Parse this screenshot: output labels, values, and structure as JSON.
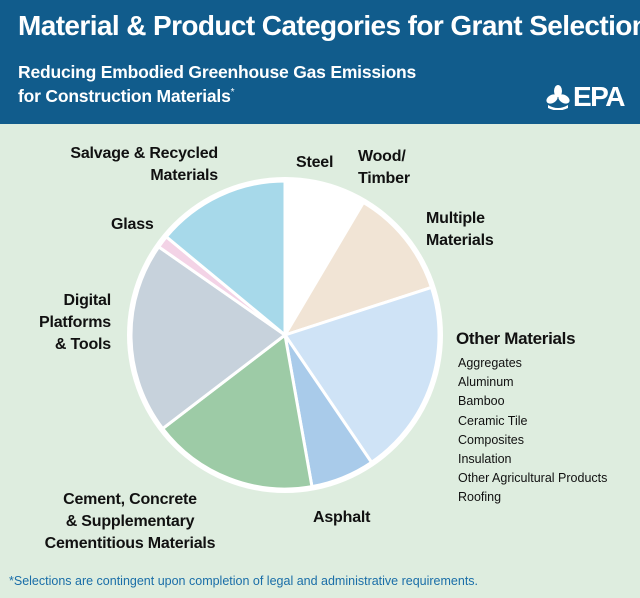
{
  "header": {
    "title": "Material & Product Categories for Grant Selections",
    "subtitle_line1": "Reducing Embodied Greenhouse Gas Emissions",
    "subtitle_line2": "for Construction Materials",
    "subtitle_mark": "*",
    "logo_text": "EPA"
  },
  "chart_data": {
    "type": "pie",
    "start_angle_deg": 0,
    "direction": "clockwise",
    "slices": [
      {
        "label": "Steel",
        "value": 5,
        "color": "#ffffff"
      },
      {
        "label": "Wood/ Timber",
        "value": 3.5,
        "color": "#ffffff"
      },
      {
        "label": "Multiple Materials",
        "value": 11.5,
        "color": "#f1e4d5"
      },
      {
        "label": "Other Materials",
        "value": 20.5,
        "color": "#cfe3f6"
      },
      {
        "label": "Asphalt",
        "value": 6.7,
        "color": "#a9cbea"
      },
      {
        "label": "Cement, Concrete & Supplementary Cementitious Materials",
        "value": 17.4,
        "color": "#9dcba6"
      },
      {
        "label": "Digital Platforms & Tools",
        "value": 20.1,
        "color": "#c7d2dc"
      },
      {
        "label": "Glass",
        "value": 1.3,
        "color": "#f3d3e6"
      },
      {
        "label": "Salvage & Recycled Materials",
        "value": 14,
        "color": "#a7d9ea"
      }
    ]
  },
  "labels": {
    "steel": "Steel",
    "wood_1": "Wood/",
    "wood_2": "Timber",
    "multiple_1": "Multiple",
    "multiple_2": "Materials",
    "salvage_1": "Salvage & Recycled",
    "salvage_2": "Materials",
    "glass": "Glass",
    "digital_1": "Digital",
    "digital_2": "Platforms",
    "digital_3": "& Tools",
    "cement_1": "Cement, Concrete",
    "cement_2": "& Supplementary",
    "cement_3": "Cementitious Materials",
    "asphalt": "Asphalt"
  },
  "other_materials": {
    "title": "Other Materials",
    "items": [
      "Aggregates",
      "Aluminum",
      "Bamboo",
      "Ceramic Tile",
      "Composites",
      "Insulation",
      "Other Agricultural Products",
      "Roofing"
    ]
  },
  "footnote": "*Selections are contingent upon completion of legal and administrative requirements.",
  "colors": {
    "header_bg": "#115c8c",
    "page_bg": "#deeddf",
    "footnote": "#1a6ea8",
    "pie_border": "#ffffff"
  }
}
